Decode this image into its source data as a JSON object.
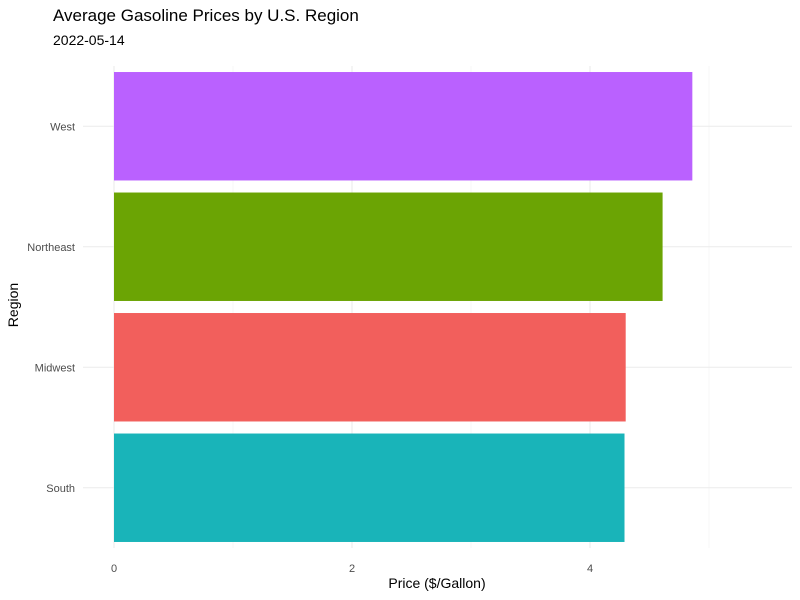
{
  "chart_data": {
    "type": "bar",
    "orientation": "horizontal",
    "title": "Average Gasoline Prices by U.S. Region",
    "subtitle": "2022-05-14",
    "xlabel": "Price ($/Gallon)",
    "ylabel": "Region",
    "categories": [
      "South",
      "Midwest",
      "Northeast",
      "West"
    ],
    "values": [
      4.29,
      4.3,
      4.61,
      4.86
    ],
    "colors": [
      "#19B4B9",
      "#F25F5C",
      "#6BA404",
      "#BA61FF"
    ],
    "xlim": [
      0,
      5.8
    ],
    "xticks": [
      0,
      2,
      4
    ],
    "grid": true,
    "legend": "none"
  }
}
